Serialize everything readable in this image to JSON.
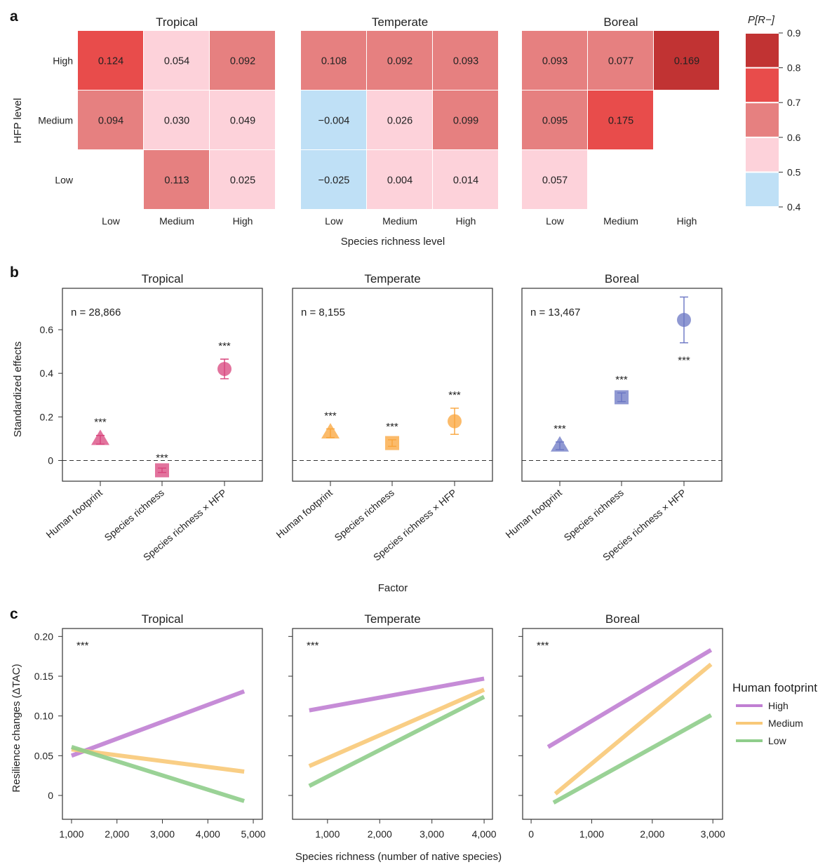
{
  "panel_labels": [
    "a",
    "b",
    "c"
  ],
  "chart_data": [
    {
      "type": "heatmap",
      "xlabel": "Species richness level",
      "ylabel": "HFP level",
      "x_categories": [
        "Low",
        "Medium",
        "High"
      ],
      "y_categories": [
        "High",
        "Medium",
        "Low"
      ],
      "colorbar": {
        "title": "P[R−]",
        "ticks": [
          "0.4",
          "0.5",
          "0.6",
          "0.7",
          "0.8",
          "0.9"
        ],
        "bins": [
          {
            "range": [
              0.4,
              0.5
            ],
            "color": "#bfe0f6"
          },
          {
            "range": [
              0.5,
              0.6
            ],
            "color": "#fdd2da"
          },
          {
            "range": [
              0.6,
              0.7
            ],
            "color": "#e68080"
          },
          {
            "range": [
              0.7,
              0.8
            ],
            "color": "#e84c4b"
          },
          {
            "range": [
              0.8,
              0.9
            ],
            "color": "#c13333"
          }
        ]
      },
      "panels": [
        {
          "title": "Tropical",
          "cells": [
            [
              {
                "value": "0.124",
                "bin": 3
              },
              {
                "value": "0.054",
                "bin": 1
              },
              {
                "value": "0.092",
                "bin": 2
              }
            ],
            [
              {
                "value": "0.094",
                "bin": 2
              },
              {
                "value": "0.030",
                "bin": 1
              },
              {
                "value": "0.049",
                "bin": 1
              }
            ],
            [
              null,
              {
                "value": "0.113",
                "bin": 2
              },
              {
                "value": "0.025",
                "bin": 1
              }
            ]
          ]
        },
        {
          "title": "Temperate",
          "cells": [
            [
              {
                "value": "0.108",
                "bin": 2
              },
              {
                "value": "0.092",
                "bin": 2
              },
              {
                "value": "0.093",
                "bin": 2
              }
            ],
            [
              {
                "value": "−0.004",
                "bin": 0
              },
              {
                "value": "0.026",
                "bin": 1
              },
              {
                "value": "0.099",
                "bin": 2
              }
            ],
            [
              {
                "value": "−0.025",
                "bin": 0
              },
              {
                "value": "0.004",
                "bin": 1
              },
              {
                "value": "0.014",
                "bin": 1
              }
            ]
          ]
        },
        {
          "title": "Boreal",
          "cells": [
            [
              {
                "value": "0.093",
                "bin": 2
              },
              {
                "value": "0.077",
                "bin": 2
              },
              {
                "value": "0.169",
                "bin": 4
              }
            ],
            [
              {
                "value": "0.095",
                "bin": 2
              },
              {
                "value": "0.175",
                "bin": 3
              },
              null
            ],
            [
              {
                "value": "0.057",
                "bin": 1
              },
              null,
              null
            ]
          ]
        }
      ]
    },
    {
      "type": "scatter",
      "ylabel": "Standardized effects",
      "xlabel": "Factor",
      "ylim": [
        -0.095,
        0.79
      ],
      "yticks": [
        "0",
        "0.2",
        "0.4",
        "0.6"
      ],
      "reference_line": 0,
      "categories": [
        "Human footprint",
        "Species richness",
        "Species richness × HFP"
      ],
      "markers": [
        "triangle",
        "square",
        "circle"
      ],
      "panels": [
        {
          "title": "Tropical",
          "n_label": "n = 28,866",
          "color": "#d8447c",
          "points": [
            {
              "value": 0.1,
              "ci": [
                0.075,
                0.115
              ],
              "sig": "***"
            },
            {
              "value": -0.045,
              "ci": [
                -0.055,
                -0.035
              ],
              "sig": "***"
            },
            {
              "value": 0.42,
              "ci": [
                0.375,
                0.465
              ],
              "sig": "***"
            }
          ]
        },
        {
          "title": "Temperate",
          "n_label": "n = 8,155",
          "color": "#f9a43a",
          "points": [
            {
              "value": 0.13,
              "ci": [
                0.105,
                0.145
              ],
              "sig": "***"
            },
            {
              "value": 0.08,
              "ci": [
                0.065,
                0.095
              ],
              "sig": "***"
            },
            {
              "value": 0.18,
              "ci": [
                0.12,
                0.24
              ],
              "sig": "***"
            }
          ]
        },
        {
          "title": "Boreal",
          "n_label": "n = 13,467",
          "color": "#6a75c3",
          "points": [
            {
              "value": 0.07,
              "ci": [
                0.05,
                0.085
              ],
              "sig": "***"
            },
            {
              "value": 0.29,
              "ci": [
                0.27,
                0.31
              ],
              "sig": "***"
            },
            {
              "value": 0.645,
              "ci": [
                0.54,
                0.75
              ],
              "sig": "***"
            }
          ]
        }
      ]
    },
    {
      "type": "line",
      "xlabel": "Species richness (number of native species)",
      "ylabel": "Resilience changes (ΔTAC)",
      "ylim": [
        -0.03,
        0.21
      ],
      "yticks": [
        "0",
        "0.05",
        "0.10",
        "0.15",
        "0.20"
      ],
      "legend": {
        "title": "Human footprint",
        "placement": "right",
        "entries": [
          {
            "name": "High",
            "color": "#c07fd3"
          },
          {
            "name": "Medium",
            "color": "#f8c978"
          },
          {
            "name": "Low",
            "color": "#8fcd8b"
          }
        ]
      },
      "panels": [
        {
          "title": "Tropical",
          "sig": "***",
          "xlim": [
            800,
            5200
          ],
          "xticks": [
            "1,000",
            "2,000",
            "3,000",
            "4,000",
            "5,000"
          ],
          "xtick_values": [
            1000,
            2000,
            3000,
            4000,
            5000
          ],
          "series": [
            {
              "name": "High",
              "x": [
                1000,
                4800
              ],
              "y": [
                0.05,
                0.131
              ]
            },
            {
              "name": "Medium",
              "x": [
                1000,
                4800
              ],
              "y": [
                0.058,
                0.03
              ]
            },
            {
              "name": "Low",
              "x": [
                1000,
                4800
              ],
              "y": [
                0.061,
                -0.007
              ]
            }
          ]
        },
        {
          "title": "Temperate",
          "sig": "***",
          "xlim": [
            330,
            4160
          ],
          "xticks": [
            "1,000",
            "2,000",
            "3,000",
            "4,000"
          ],
          "xtick_values": [
            1000,
            2000,
            3000,
            4000
          ],
          "series": [
            {
              "name": "High",
              "x": [
                650,
                4000
              ],
              "y": [
                0.107,
                0.147
              ]
            },
            {
              "name": "Medium",
              "x": [
                650,
                4000
              ],
              "y": [
                0.037,
                0.133
              ]
            },
            {
              "name": "Low",
              "x": [
                650,
                4000
              ],
              "y": [
                0.012,
                0.124
              ]
            }
          ]
        },
        {
          "title": "Boreal",
          "sig": "***",
          "xlim": [
            -140,
            3160
          ],
          "xticks": [
            "0",
            "1,000",
            "2,000",
            "3,000"
          ],
          "xtick_values": [
            0,
            1000,
            2000,
            3000
          ],
          "series": [
            {
              "name": "High",
              "x": [
                280,
                2970
              ],
              "y": [
                0.061,
                0.183
              ]
            },
            {
              "name": "Medium",
              "x": [
                400,
                2970
              ],
              "y": [
                0.002,
                0.165
              ]
            },
            {
              "name": "Low",
              "x": [
                370,
                2970
              ],
              "y": [
                -0.009,
                0.101
              ]
            }
          ]
        }
      ]
    }
  ]
}
